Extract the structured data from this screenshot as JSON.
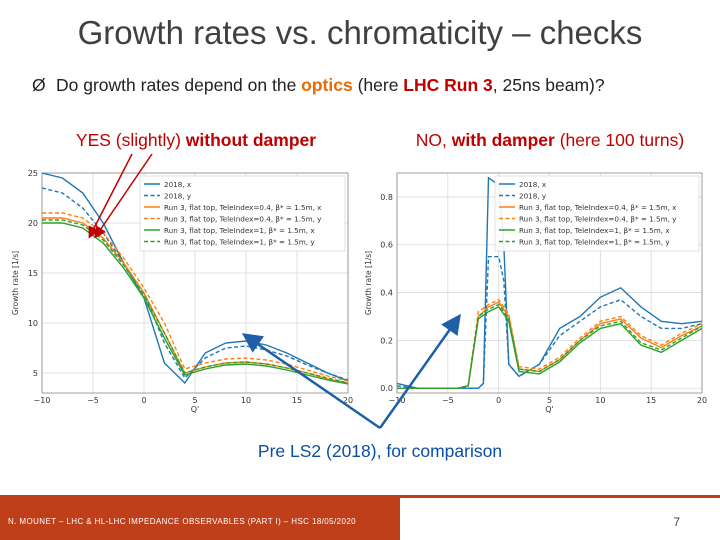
{
  "slide": {
    "title": "Growth rates vs. chromaticity – checks",
    "bullet_arrow": "Ø",
    "bullet_a": "Do growth rates depend on the ",
    "bullet_optics": "optics",
    "bullet_b": " (here ",
    "bullet_run3": "LHC Run 3",
    "bullet_c": ", 25ns beam)?",
    "left_label_a": "YES (slightly) ",
    "left_label_b": "without damper",
    "right_label_a": "NO, ",
    "right_label_b": "with damper",
    "right_label_c": " (here 100 turns)",
    "pre_ls2": "Pre LS2 (2018), for comparison",
    "footer_text": "N. MOUNET – LHC & HL-LHC IMPEDANCE OBSERVABLES (PART I) – HSC 18/05/2020",
    "page_number": "7"
  },
  "colors": {
    "arrow_red": "#c00000",
    "arrow_blue": "#1f5fa8",
    "footer": "#bf3f1a"
  },
  "chart_data": [
    {
      "type": "line",
      "xlabel": "Q'",
      "ylabel": "Growth rate [1/s]",
      "xlim": [
        -10,
        20
      ],
      "ylim": [
        3,
        25
      ],
      "xticks": [
        "−10",
        "−5",
        "0",
        "5",
        "10",
        "15",
        "20"
      ],
      "yticks": [
        "5",
        "10",
        "15",
        "20",
        "25"
      ],
      "grid": true,
      "legend": "top-right",
      "series": [
        {
          "name": "2018, x",
          "color": "#1f77b4",
          "dash": "solid",
          "x": [
            -10,
            -8,
            -6,
            -4,
            -2,
            0,
            2,
            4,
            6,
            8,
            10,
            12,
            14,
            16,
            18,
            20
          ],
          "y": [
            25,
            24.5,
            23,
            20,
            16,
            12.5,
            6,
            4,
            7,
            8,
            8.2,
            7.8,
            7,
            6,
            5,
            4.2
          ]
        },
        {
          "name": "2018, y",
          "color": "#1f77b4",
          "dash": "dashed",
          "x": [
            -10,
            -8,
            -6,
            -4,
            -2,
            0,
            2,
            4,
            6,
            8,
            10,
            12,
            14,
            16,
            18,
            20
          ],
          "y": [
            23.5,
            23,
            21.5,
            19,
            16,
            13,
            8,
            4.5,
            6.5,
            7.5,
            7.7,
            7.3,
            6.7,
            5.8,
            5,
            4.3
          ]
        },
        {
          "name": "Run 3, flat top, TeleIndex=0.4, β* = 1.5m, x",
          "color": "#ff7f0e",
          "dash": "solid",
          "x": [
            -10,
            -8,
            -6,
            -4,
            -2,
            0,
            2,
            4,
            6,
            8,
            10,
            12,
            14,
            16,
            18,
            20
          ],
          "y": [
            20.5,
            20.5,
            20,
            18.5,
            16,
            13,
            9,
            5,
            5.6,
            6,
            6.1,
            5.9,
            5.5,
            5,
            4.4,
            4
          ]
        },
        {
          "name": "Run 3, flat top, TeleIndex=0.4, β* = 1.5m, y",
          "color": "#ff7f0e",
          "dash": "dashed",
          "x": [
            -10,
            -8,
            -6,
            -4,
            -2,
            0,
            2,
            4,
            6,
            8,
            10,
            12,
            14,
            16,
            18,
            20
          ],
          "y": [
            21,
            21,
            20.5,
            19,
            16.5,
            13.5,
            10,
            5.4,
            6,
            6.4,
            6.5,
            6.3,
            5.9,
            5.3,
            4.7,
            4.2
          ]
        },
        {
          "name": "Run 3, flat top, TeleIndex=1, β* = 1.5m, x",
          "color": "#2ca02c",
          "dash": "solid",
          "x": [
            -10,
            -8,
            -6,
            -4,
            -2,
            0,
            2,
            4,
            6,
            8,
            10,
            12,
            14,
            16,
            18,
            20
          ],
          "y": [
            20,
            20,
            19.5,
            18,
            15.5,
            12.5,
            8.5,
            4.8,
            5.4,
            5.8,
            5.9,
            5.7,
            5.3,
            4.8,
            4.3,
            3.9
          ]
        },
        {
          "name": "Run 3, flat top, TeleIndex=1, β* = 1.5m, y",
          "color": "#2ca02c",
          "dash": "dashed",
          "x": [
            -10,
            -8,
            -6,
            -4,
            -2,
            0,
            2,
            4,
            6,
            8,
            10,
            12,
            14,
            16,
            18,
            20
          ],
          "y": [
            20.3,
            20.3,
            19.8,
            18.3,
            15.8,
            12.8,
            9,
            5,
            5.6,
            6,
            6.1,
            5.9,
            5.5,
            5,
            4.5,
            4
          ]
        }
      ]
    },
    {
      "type": "line",
      "xlabel": "Q'",
      "ylabel": "Growth rate [1/s]",
      "xlim": [
        -10,
        20
      ],
      "ylim": [
        -0.02,
        0.9
      ],
      "xticks": [
        "−10",
        "−5",
        "0",
        "5",
        "10",
        "15",
        "20"
      ],
      "yticks": [
        "0.0",
        "0.2",
        "0.4",
        "0.6",
        "0.8"
      ],
      "grid": true,
      "legend": "top-right",
      "series": [
        {
          "name": "2018, x",
          "color": "#1f77b4",
          "dash": "solid",
          "x": [
            -10,
            -8,
            -6,
            -4,
            -2,
            -1.5,
            -1,
            0,
            0.5,
            1,
            2,
            4,
            6,
            8,
            10,
            12,
            14,
            16,
            18,
            20
          ],
          "y": [
            0.02,
            0,
            0,
            0,
            0,
            0.02,
            0.88,
            0.85,
            0.6,
            0.1,
            0.05,
            0.1,
            0.25,
            0.3,
            0.38,
            0.42,
            0.34,
            0.28,
            0.27,
            0.28
          ]
        },
        {
          "name": "2018, y",
          "color": "#1f77b4",
          "dash": "dashed",
          "x": [
            -10,
            -8,
            -6,
            -4,
            -2,
            -1.5,
            -1,
            0,
            0.5,
            1,
            2,
            4,
            6,
            8,
            10,
            12,
            14,
            16,
            18,
            20
          ],
          "y": [
            0.01,
            0,
            0,
            0,
            0,
            0.02,
            0.55,
            0.55,
            0.45,
            0.1,
            0.05,
            0.1,
            0.22,
            0.28,
            0.34,
            0.37,
            0.3,
            0.25,
            0.25,
            0.27
          ]
        },
        {
          "name": "Run 3, flat top, TeleIndex=0.4, β* = 1.5m, x",
          "color": "#ff7f0e",
          "dash": "solid",
          "x": [
            -10,
            -8,
            -6,
            -4,
            -3,
            -2,
            -1,
            0,
            1,
            2,
            4,
            6,
            8,
            10,
            12,
            14,
            16,
            18,
            20
          ],
          "y": [
            0,
            0,
            0,
            0,
            0.01,
            0.3,
            0.34,
            0.36,
            0.3,
            0.08,
            0.07,
            0.12,
            0.2,
            0.27,
            0.29,
            0.21,
            0.17,
            0.22,
            0.26
          ]
        },
        {
          "name": "Run 3, flat top, TeleIndex=0.4, β* = 1.5m, y",
          "color": "#ff7f0e",
          "dash": "dashed",
          "x": [
            -10,
            -8,
            -6,
            -4,
            -3,
            -2,
            -1,
            0,
            1,
            2,
            4,
            6,
            8,
            10,
            12,
            14,
            16,
            18,
            20
          ],
          "y": [
            0,
            0,
            0,
            0,
            0.01,
            0.32,
            0.35,
            0.37,
            0.31,
            0.09,
            0.08,
            0.13,
            0.21,
            0.28,
            0.3,
            0.22,
            0.18,
            0.23,
            0.27
          ]
        },
        {
          "name": "Run 3, flat top, TeleIndex=1, β* = 1.5m, x",
          "color": "#2ca02c",
          "dash": "solid",
          "x": [
            -10,
            -8,
            -6,
            -4,
            -3,
            -2,
            -1,
            0,
            1,
            2,
            4,
            6,
            8,
            10,
            12,
            14,
            16,
            18,
            20
          ],
          "y": [
            0,
            0,
            0,
            0,
            0.01,
            0.29,
            0.32,
            0.34,
            0.28,
            0.07,
            0.06,
            0.11,
            0.19,
            0.25,
            0.27,
            0.18,
            0.15,
            0.2,
            0.25
          ]
        },
        {
          "name": "Run 3, flat top, TeleIndex=1, β* = 1.5m, y",
          "color": "#2ca02c",
          "dash": "dashed",
          "x": [
            -10,
            -8,
            -6,
            -4,
            -3,
            -2,
            -1,
            0,
            1,
            2,
            4,
            6,
            8,
            10,
            12,
            14,
            16,
            18,
            20
          ],
          "y": [
            0,
            0,
            0,
            0,
            0.01,
            0.3,
            0.33,
            0.35,
            0.29,
            0.08,
            0.07,
            0.12,
            0.2,
            0.26,
            0.28,
            0.19,
            0.16,
            0.21,
            0.26
          ]
        }
      ]
    }
  ]
}
